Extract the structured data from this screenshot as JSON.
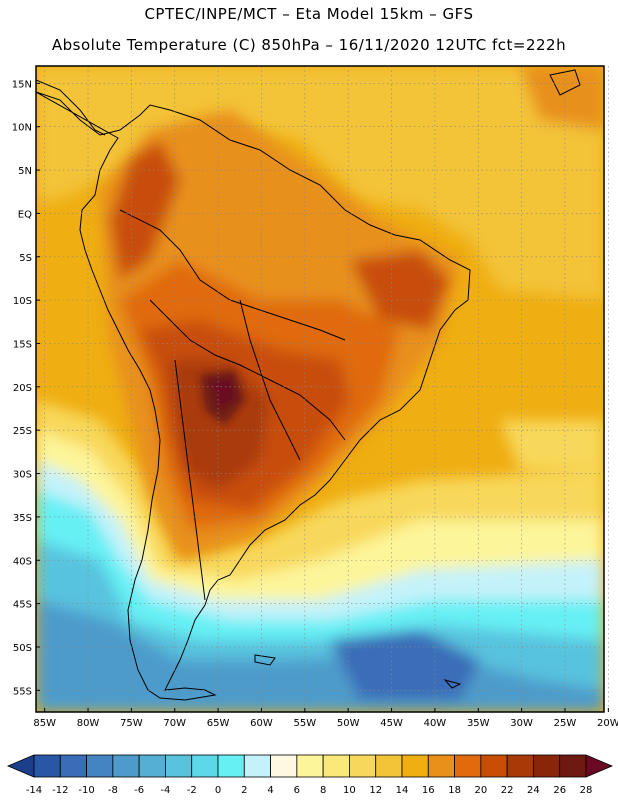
{
  "header": {
    "line1": "CPTEC/INPE/MCT –  Eta Model 15km – GFS",
    "line2": "Absolute Temperature (C) 850hPa – 16/11/2020 12UTC fct=222h"
  },
  "axes": {
    "lat_labels": [
      "15N",
      "10N",
      "5N",
      "EQ",
      "5S",
      "10S",
      "15S",
      "20S",
      "25S",
      "30S",
      "35S",
      "40S",
      "45S",
      "50S",
      "55S"
    ],
    "lat_values": [
      15,
      10,
      5,
      0,
      -5,
      -10,
      -15,
      -20,
      -25,
      -30,
      -35,
      -40,
      -45,
      -50,
      -55
    ],
    "lon_labels": [
      "85W",
      "80W",
      "75W",
      "70W",
      "65W",
      "60W",
      "55W",
      "50W",
      "45W",
      "40W",
      "35W",
      "30W",
      "25W",
      "20W"
    ],
    "lon_values": [
      -85,
      -80,
      -75,
      -70,
      -65,
      -60,
      -55,
      -50,
      -45,
      -40,
      -35,
      -30,
      -25,
      -20
    ],
    "lat_range": [
      -57.5,
      17.0
    ],
    "lon_range": [
      -86.0,
      -20.5
    ]
  },
  "colorbar": {
    "labels": [
      "-14",
      "-12",
      "-10",
      "-8",
      "-6",
      "-4",
      "-2",
      "0",
      "2",
      "4",
      "6",
      "8",
      "10",
      "12",
      "14",
      "16",
      "18",
      "20",
      "22",
      "24",
      "26",
      "28"
    ],
    "colors": [
      "#1c3f8c",
      "#2a56a6",
      "#3a6db8",
      "#4584c2",
      "#4e9bcb",
      "#55afd4",
      "#59c3de",
      "#5dd8e8",
      "#66f0f4",
      "#c4f2fa",
      "#fdf8e2",
      "#fdf59a",
      "#fbe87a",
      "#f8d85a",
      "#f3c338",
      "#efae12",
      "#e8901a",
      "#e06a0c",
      "#c84e08",
      "#a93a08",
      "#8a2608",
      "#6e1a12",
      "#6a0a22"
    ]
  },
  "legend_map": {
    "cold_south_atlantic_min": -8,
    "amazon_typical": 18,
    "chaco_max": 28
  }
}
